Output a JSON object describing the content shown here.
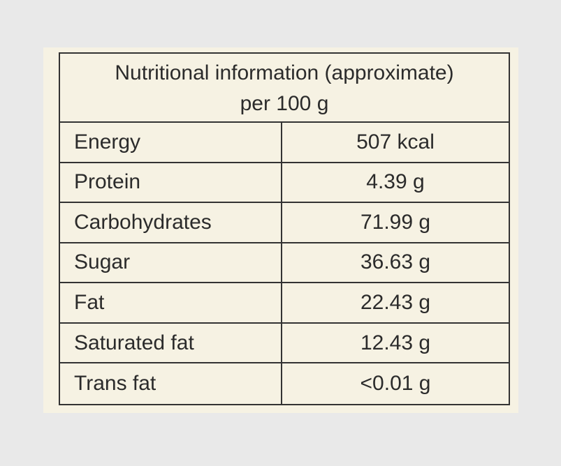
{
  "header": {
    "title": "Nutritional information (approximate)",
    "subtitle": "per 100 g"
  },
  "table": {
    "rows": [
      [
        "Energy",
        "507 kcal"
      ],
      [
        "Protein",
        "4.39 g"
      ],
      [
        "Carbohydrates",
        "71.99 g"
      ],
      [
        "Sugar",
        "36.63 g"
      ],
      [
        "Fat",
        "22.43 g"
      ],
      [
        "Saturated fat",
        "12.43 g"
      ],
      [
        "Trans fat",
        "<0.01 g"
      ]
    ]
  }
}
